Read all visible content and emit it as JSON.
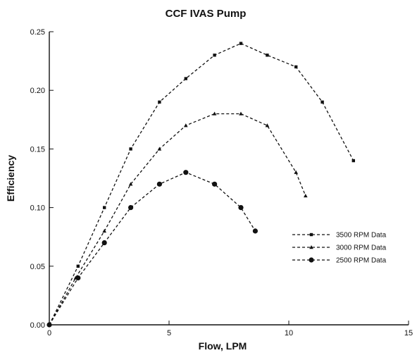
{
  "chart_data": {
    "type": "line",
    "title": "CCF IVAS Pump",
    "xlabel": "Flow, LPM",
    "ylabel": "Efficiency",
    "xlim": [
      0,
      15
    ],
    "ylim": [
      0,
      0.25
    ],
    "xticks": [
      0,
      5,
      10,
      15
    ],
    "xtick_labels": [
      "0",
      "5",
      "10",
      "15"
    ],
    "yticks": [
      0,
      0.05,
      0.1,
      0.15,
      0.2,
      0.25
    ],
    "ytick_labels": [
      "0.00",
      "0.05",
      "0.10",
      "0.15",
      "0.20",
      "0.25"
    ],
    "grid": false,
    "legend_position": "right",
    "series": [
      {
        "name": "3500 RPM Data",
        "marker": "square",
        "x": [
          0,
          1.2,
          2.3,
          3.4,
          4.6,
          5.7,
          6.9,
          8.0,
          9.1,
          10.3,
          11.4,
          12.7
        ],
        "y": [
          0.0,
          0.05,
          0.1,
          0.15,
          0.19,
          0.21,
          0.23,
          0.24,
          0.23,
          0.22,
          0.19,
          0.14
        ]
      },
      {
        "name": "3000 RPM Data",
        "marker": "triangle",
        "x": [
          0,
          1.1,
          2.3,
          3.4,
          4.6,
          5.7,
          6.9,
          8.0,
          9.1,
          10.3,
          10.7
        ],
        "y": [
          0.0,
          0.04,
          0.08,
          0.12,
          0.15,
          0.17,
          0.18,
          0.18,
          0.17,
          0.13,
          0.11
        ]
      },
      {
        "name": "2500 RPM Data",
        "marker": "circle",
        "x": [
          0,
          1.2,
          2.3,
          3.4,
          4.6,
          5.7,
          6.9,
          8.0,
          8.6
        ],
        "y": [
          0.0,
          0.04,
          0.07,
          0.1,
          0.12,
          0.13,
          0.12,
          0.1,
          0.08
        ]
      }
    ]
  }
}
